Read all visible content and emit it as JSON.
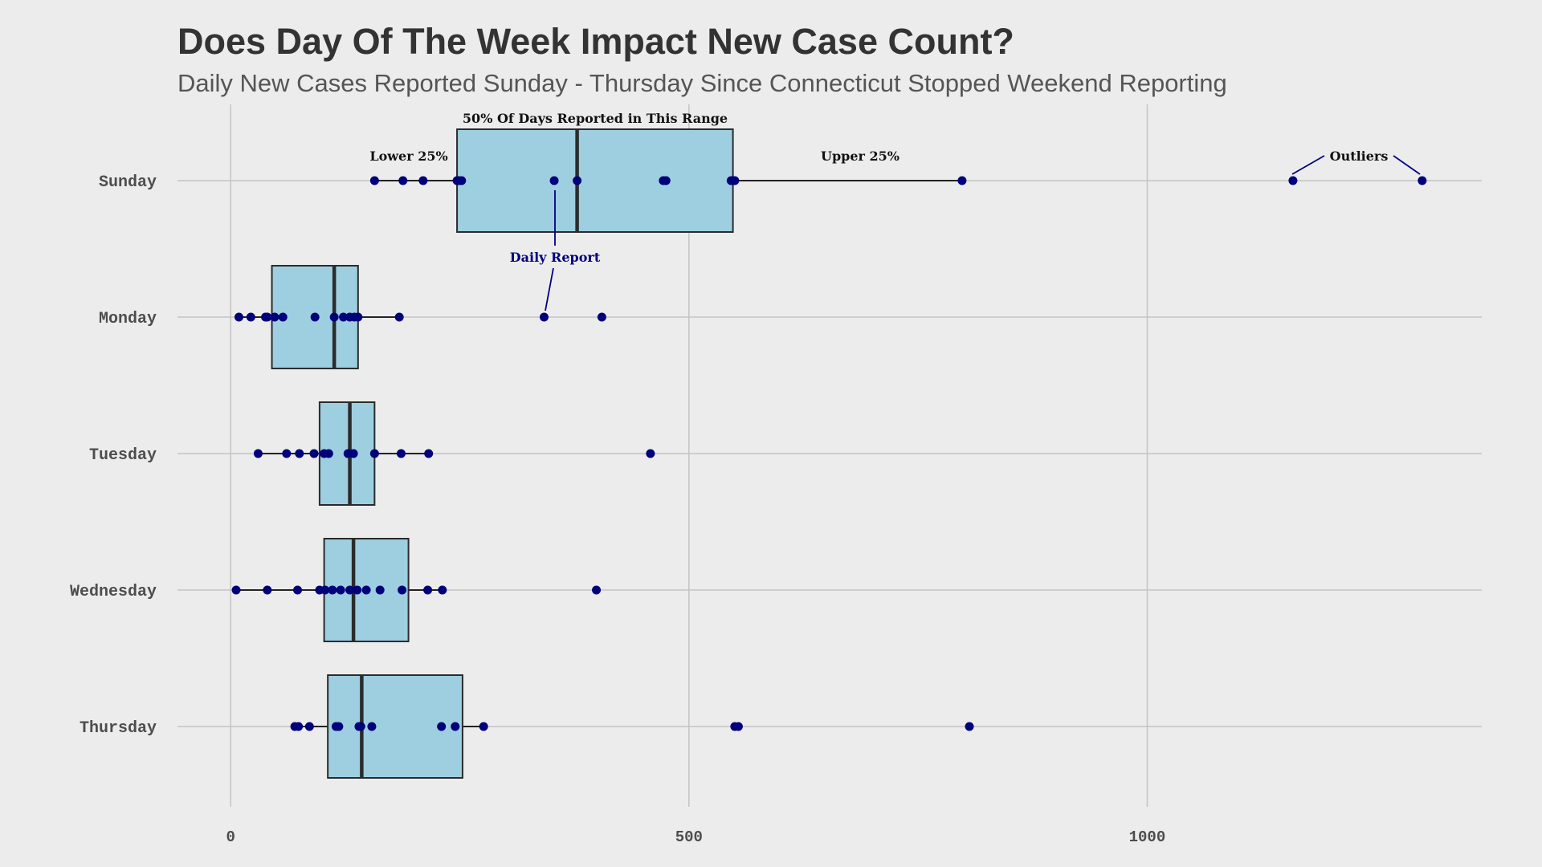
{
  "chart_data": {
    "type": "boxplot",
    "title": "Does Day Of The Week Impact New Case Count?",
    "subtitle": "Daily New Cases Reported Sunday - Thursday Since Connecticut Stopped Weekend Reporting",
    "xlabel": "",
    "ylabel": "",
    "xlim": [
      -58,
      1365
    ],
    "xticks": [
      0,
      500,
      1000
    ],
    "grid": true,
    "orientation": "horizontal",
    "colors": {
      "box": "#9ecfe0",
      "points": "#00007a",
      "grid": "#c4c4c4",
      "background": "#ececec"
    },
    "categories": [
      "Sunday",
      "Monday",
      "Tuesday",
      "Wednesday",
      "Thursday"
    ],
    "series": [
      {
        "category": "Sunday",
        "whisker_low": 157,
        "q1": 247,
        "median": 378,
        "q3": 548,
        "whisker_high": 798,
        "points": [
          157,
          188,
          210,
          247,
          249,
          252,
          353,
          378,
          472,
          475,
          546,
          548,
          550,
          798,
          1159,
          1300
        ]
      },
      {
        "category": "Monday",
        "whisker_low": 9,
        "q1": 45,
        "median": 113,
        "q3": 139,
        "whisker_high": 184,
        "points": [
          9,
          22,
          38,
          40,
          48,
          57,
          92,
          113,
          123,
          130,
          135,
          139,
          184,
          342,
          405
        ]
      },
      {
        "category": "Tuesday",
        "whisker_low": 30,
        "q1": 97,
        "median": 130,
        "q3": 157,
        "whisker_high": 216,
        "points": [
          30,
          61,
          75,
          91,
          102,
          107,
          128,
          134,
          157,
          186,
          216,
          458
        ]
      },
      {
        "category": "Wednesday",
        "whisker_low": 6,
        "q1": 102,
        "median": 134,
        "q3": 194,
        "whisker_high": 231,
        "points": [
          6,
          40,
          73,
          97,
          103,
          111,
          120,
          130,
          138,
          148,
          163,
          187,
          215,
          231,
          399
        ]
      },
      {
        "category": "Thursday",
        "whisker_low": 70,
        "q1": 106,
        "median": 143,
        "q3": 253,
        "whisker_high": 276,
        "points": [
          70,
          74,
          86,
          115,
          118,
          140,
          142,
          154,
          230,
          245,
          276,
          550,
          554,
          806
        ]
      }
    ],
    "annotations": {
      "range_50": "50% Of Days Reported in This Range",
      "lower_25": "Lower 25%",
      "upper_25": "Upper 25%",
      "outliers": "Outliers",
      "daily_report": "Daily Report"
    }
  }
}
